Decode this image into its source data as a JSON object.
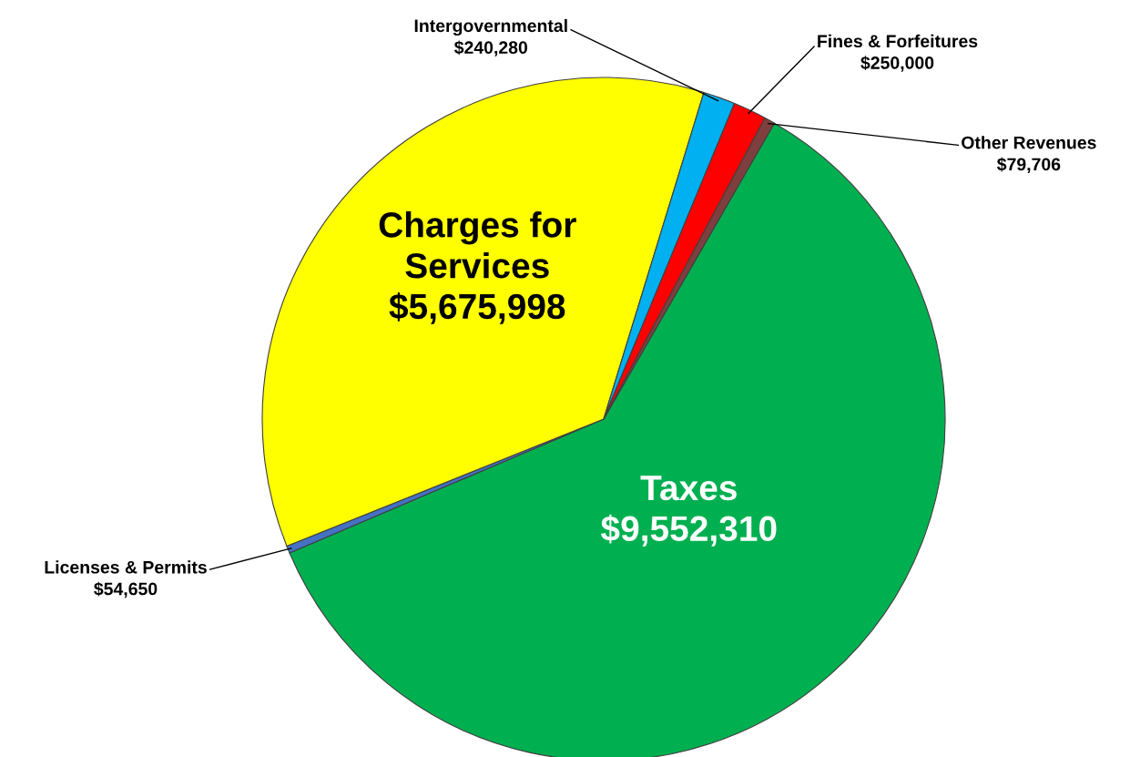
{
  "chart_data": {
    "type": "pie",
    "categories": [
      "Taxes",
      "Licenses & Permits",
      "Charges for Services",
      "Intergovernmental",
      "Fines & Forfeitures",
      "Other Revenues"
    ],
    "values": [
      9552310,
      54650,
      5675998,
      240280,
      250000,
      79706
    ],
    "colors": [
      "#00b050",
      "#4472c4",
      "#ffff00",
      "#00b0f0",
      "#ff0000",
      "#7f3f3f"
    ],
    "value_labels": [
      "$9,552,310",
      "$54,650",
      "$5,675,998",
      "$240,280",
      "$250,000",
      "$79,706"
    ]
  }
}
